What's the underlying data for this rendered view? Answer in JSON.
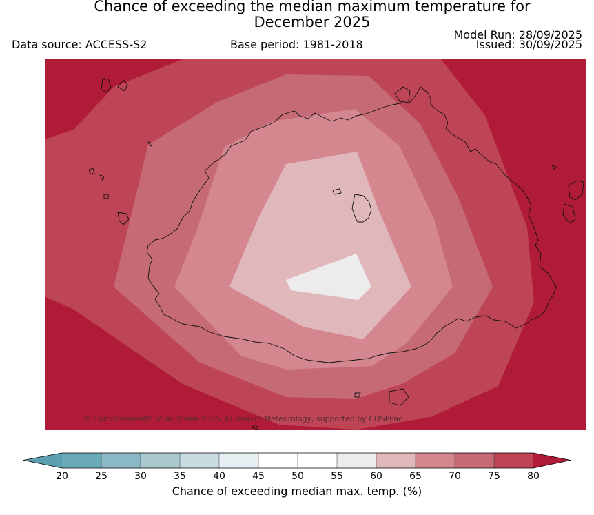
{
  "title_line1": "Chance of exceeding the median maximum temperature for",
  "title_line2": "December 2025",
  "data_source": "Data source: ACCESS-S2",
  "base_period": "Base period: 1981-2018",
  "model_run": "Model Run: 28/09/2025",
  "issued": "Issued: 30/09/2025",
  "copyright": "© Commonwealth of Australia 2025, Bureau of Meteorology, supported by COSPPac",
  "colorbar": {
    "label": "Chance of exceeding median max. temp. (%)",
    "ticks": [
      "20",
      "25",
      "30",
      "35",
      "40",
      "45",
      "50",
      "55",
      "60",
      "65",
      "70",
      "75",
      "80"
    ],
    "colors": [
      "#6aa9b7",
      "#8ab8c4",
      "#a9c9cf",
      "#c8dbe0",
      "#e8eff2",
      "#ffffff",
      "#ffffff",
      "#eeebec",
      "#e0b8bc",
      "#d4878f",
      "#c66b76",
      "#be4556"
    ],
    "under_color": "#5ba0b0",
    "over_color": "#b01c38"
  },
  "map": {
    "region": "Fiji",
    "colors": {
      "ge80": "#b01c38",
      "p75_80": "#be4556",
      "p70_75": "#c66b76",
      "p65_70": "#d4878f",
      "p60_65": "#e0b8bc",
      "p55_60": "#eeebec"
    }
  }
}
